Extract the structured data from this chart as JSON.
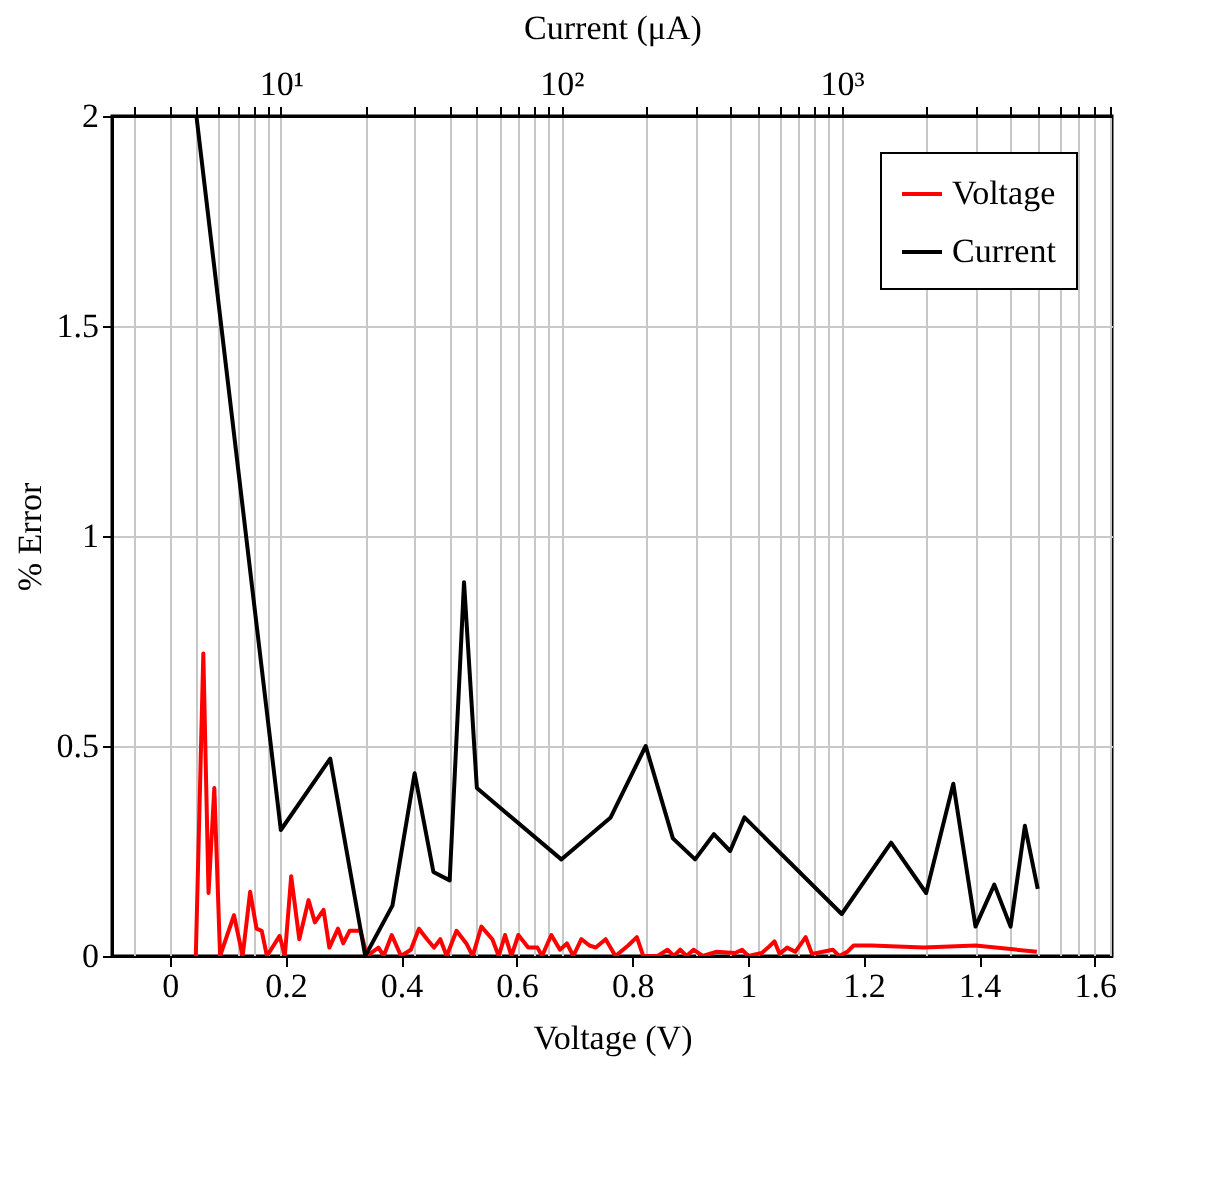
{
  "chart_data": {
    "type": "line",
    "xlabel": "Voltage (V)",
    "ylabel": "% Error",
    "x2label": "Current (μA)",
    "xlim": [
      -0.1,
      1.63
    ],
    "xticks": [
      0,
      0.2,
      0.4,
      0.6,
      0.8,
      1,
      1.2,
      1.4,
      1.6
    ],
    "x2lim": [
      2.5,
      9200
    ],
    "x2ticks": [
      {
        "value": 3,
        "label": null
      },
      {
        "value": 4,
        "label": null
      },
      {
        "value": 5,
        "label": null
      },
      {
        "value": 6,
        "label": null
      },
      {
        "value": 7,
        "label": null
      },
      {
        "value": 8,
        "label": null
      },
      {
        "value": 9,
        "label": null
      },
      {
        "value": 10,
        "label": "10¹"
      },
      {
        "value": 20,
        "label": null
      },
      {
        "value": 30,
        "label": null
      },
      {
        "value": 40,
        "label": null
      },
      {
        "value": 50,
        "label": null
      },
      {
        "value": 60,
        "label": null
      },
      {
        "value": 70,
        "label": null
      },
      {
        "value": 80,
        "label": null
      },
      {
        "value": 90,
        "label": null
      },
      {
        "value": 100,
        "label": "10²"
      },
      {
        "value": 200,
        "label": null
      },
      {
        "value": 300,
        "label": null
      },
      {
        "value": 400,
        "label": null
      },
      {
        "value": 500,
        "label": null
      },
      {
        "value": 600,
        "label": null
      },
      {
        "value": 700,
        "label": null
      },
      {
        "value": 800,
        "label": null
      },
      {
        "value": 900,
        "label": null
      },
      {
        "value": 1000,
        "label": "10³"
      },
      {
        "value": 2000,
        "label": null
      },
      {
        "value": 3000,
        "label": null
      },
      {
        "value": 4000,
        "label": null
      },
      {
        "value": 5000,
        "label": null
      },
      {
        "value": 6000,
        "label": null
      },
      {
        "value": 7000,
        "label": null
      },
      {
        "value": 8000,
        "label": null
      },
      {
        "value": 9000,
        "label": null
      }
    ],
    "log": "x2",
    "ylim": [
      0,
      2
    ],
    "yticks": [
      0,
      0.5,
      1,
      1.5,
      2
    ],
    "grid": true,
    "legend": "top right",
    "line_style": "solid",
    "series": [
      {
        "name": "Voltage",
        "color": "#ff0000",
        "x": [
          0.045,
          0.058,
          0.067,
          0.077,
          0.087,
          0.111,
          0.126,
          0.139,
          0.15,
          0.159,
          0.168,
          0.19,
          0.199,
          0.21,
          0.224,
          0.24,
          0.251,
          0.266,
          0.276,
          0.291,
          0.3,
          0.311,
          0.33,
          0.341,
          0.361,
          0.37,
          0.384,
          0.4,
          0.417,
          0.431,
          0.445,
          0.457,
          0.468,
          0.479,
          0.496,
          0.513,
          0.524,
          0.539,
          0.558,
          0.569,
          0.58,
          0.591,
          0.603,
          0.62,
          0.636,
          0.644,
          0.66,
          0.675,
          0.687,
          0.698,
          0.712,
          0.726,
          0.737,
          0.754,
          0.771,
          0.793,
          0.808,
          0.819,
          0.844,
          0.861,
          0.872,
          0.883,
          0.894,
          0.906,
          0.922,
          0.945,
          0.978,
          0.99,
          1.001,
          1.024,
          1.035,
          1.046,
          1.055,
          1.068,
          1.082,
          1.1,
          1.111,
          1.13,
          1.147,
          1.158,
          1.172,
          1.183,
          1.214,
          1.304,
          1.394,
          1.5
        ],
        "values": [
          0,
          0.72,
          0.15,
          0.4,
          0,
          0.097,
          0,
          0.153,
          0.065,
          0.06,
          0,
          0.048,
          0,
          0.19,
          0.04,
          0.133,
          0.08,
          0.11,
          0.02,
          0.065,
          0.03,
          0.06,
          0.06,
          0,
          0.02,
          0,
          0.05,
          0,
          0.015,
          0.065,
          0.04,
          0.02,
          0.04,
          0,
          0.06,
          0.03,
          0,
          0.07,
          0.04,
          0,
          0.05,
          0,
          0.05,
          0.02,
          0.02,
          0,
          0.05,
          0.015,
          0.03,
          0,
          0.04,
          0.025,
          0.02,
          0.04,
          0,
          0.025,
          0.045,
          0,
          0,
          0.015,
          0,
          0.015,
          0,
          0.015,
          0,
          0.01,
          0.007,
          0.015,
          0,
          0.007,
          0.02,
          0.035,
          0.005,
          0.02,
          0.01,
          0.045,
          0.005,
          0.01,
          0.015,
          0,
          0.01,
          0.025,
          0.025,
          0.02,
          0.025,
          0.01
        ]
      },
      {
        "name": "Current",
        "color": "#000000",
        "axis": "x2",
        "x": [
          5,
          10,
          15,
          20,
          25,
          30,
          35,
          40,
          45,
          50,
          100,
          150,
          200,
          250,
          300,
          350,
          400,
          450,
          1000,
          1500,
          2000,
          2500,
          3000,
          3500,
          4000,
          4500,
          5000
        ],
        "values": [
          2.0,
          0.3,
          0.47,
          0,
          0.12,
          0.435,
          0.2,
          0.18,
          0.89,
          0.4,
          0.23,
          0.33,
          0.5,
          0.28,
          0.23,
          0.29,
          0.25,
          0.33,
          0.1,
          0.27,
          0.15,
          0.41,
          0.07,
          0.17,
          0.07,
          0.31,
          0.16
        ]
      }
    ]
  }
}
